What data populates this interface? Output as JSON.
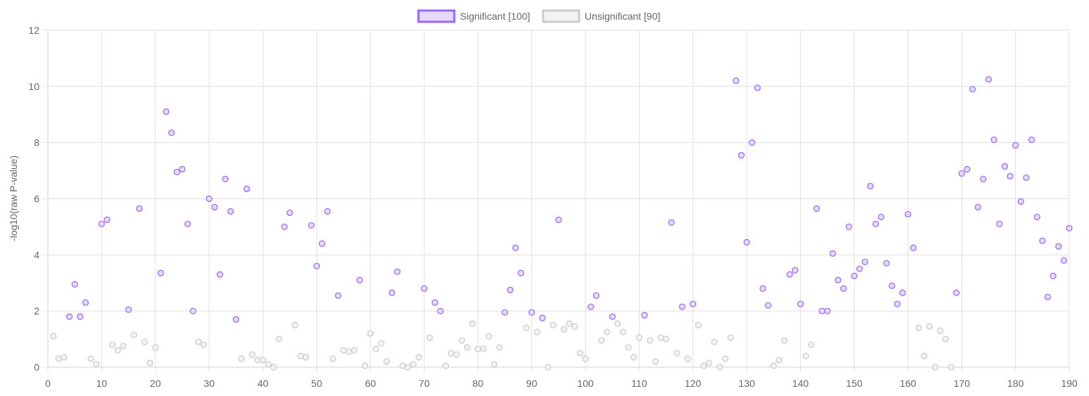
{
  "chart_data": {
    "type": "scatter",
    "title": "",
    "xlabel": "",
    "ylabel": "-log10(raw P-value)",
    "xlim": [
      0,
      190
    ],
    "ylim": [
      0,
      12
    ],
    "xticks": [
      0,
      10,
      20,
      30,
      40,
      50,
      60,
      70,
      80,
      90,
      100,
      110,
      120,
      130,
      140,
      150,
      160,
      170,
      180,
      190
    ],
    "yticks": [
      0,
      2,
      4,
      6,
      8,
      10,
      12
    ],
    "grid": true,
    "legend_position": "top",
    "series": [
      {
        "name": "Significant [100]",
        "stroke": "#9966ff",
        "fill": "#e5d9ff",
        "points": [
          [
            4,
            1.8
          ],
          [
            5,
            2.95
          ],
          [
            6,
            1.8
          ],
          [
            7,
            2.3
          ],
          [
            10,
            5.1
          ],
          [
            11,
            5.25
          ],
          [
            15,
            2.05
          ],
          [
            17,
            5.65
          ],
          [
            21,
            3.35
          ],
          [
            22,
            9.1
          ],
          [
            23,
            8.35
          ],
          [
            24,
            6.95
          ],
          [
            25,
            7.05
          ],
          [
            26,
            5.1
          ],
          [
            27,
            2.0
          ],
          [
            30,
            6.0
          ],
          [
            31,
            5.7
          ],
          [
            32,
            3.3
          ],
          [
            33,
            6.7
          ],
          [
            34,
            5.55
          ],
          [
            35,
            1.7
          ],
          [
            37,
            6.35
          ],
          [
            44,
            5.0
          ],
          [
            45,
            5.5
          ],
          [
            49,
            5.05
          ],
          [
            50,
            3.6
          ],
          [
            51,
            4.4
          ],
          [
            52,
            5.55
          ],
          [
            54,
            2.55
          ],
          [
            58,
            3.1
          ],
          [
            64,
            2.65
          ],
          [
            65,
            3.4
          ],
          [
            70,
            2.8
          ],
          [
            72,
            2.3
          ],
          [
            73,
            2.0
          ],
          [
            85,
            1.95
          ],
          [
            86,
            2.75
          ],
          [
            87,
            4.25
          ],
          [
            88,
            3.35
          ],
          [
            90,
            1.95
          ],
          [
            92,
            1.75
          ],
          [
            95,
            5.25
          ],
          [
            101,
            2.15
          ],
          [
            102,
            2.55
          ],
          [
            105,
            1.8
          ],
          [
            111,
            1.85
          ],
          [
            116,
            5.15
          ],
          [
            118,
            2.15
          ],
          [
            120,
            2.25
          ],
          [
            128,
            10.2
          ],
          [
            129,
            7.55
          ],
          [
            130,
            4.45
          ],
          [
            131,
            8.0
          ],
          [
            132,
            9.95
          ],
          [
            133,
            2.8
          ],
          [
            134,
            2.2
          ],
          [
            138,
            3.3
          ],
          [
            139,
            3.45
          ],
          [
            140,
            2.25
          ],
          [
            143,
            5.65
          ],
          [
            144,
            2.0
          ],
          [
            145,
            2.0
          ],
          [
            146,
            4.05
          ],
          [
            147,
            3.1
          ],
          [
            148,
            2.8
          ],
          [
            149,
            5.0
          ],
          [
            150,
            3.25
          ],
          [
            151,
            3.5
          ],
          [
            152,
            3.75
          ],
          [
            153,
            6.45
          ],
          [
            154,
            5.1
          ],
          [
            155,
            5.35
          ],
          [
            156,
            3.7
          ],
          [
            157,
            2.9
          ],
          [
            158,
            2.25
          ],
          [
            159,
            2.65
          ],
          [
            160,
            5.45
          ],
          [
            161,
            4.25
          ],
          [
            169,
            2.65
          ],
          [
            170,
            6.9
          ],
          [
            171,
            7.05
          ],
          [
            172,
            9.9
          ],
          [
            173,
            5.7
          ],
          [
            174,
            6.7
          ],
          [
            175,
            10.25
          ],
          [
            176,
            8.1
          ],
          [
            177,
            5.1
          ],
          [
            178,
            7.15
          ],
          [
            179,
            6.8
          ],
          [
            180,
            7.9
          ],
          [
            181,
            5.9
          ],
          [
            182,
            6.75
          ],
          [
            183,
            8.1
          ],
          [
            184,
            5.35
          ],
          [
            185,
            4.5
          ],
          [
            186,
            2.5
          ],
          [
            187,
            3.25
          ],
          [
            188,
            4.3
          ],
          [
            189,
            3.8
          ],
          [
            190,
            4.95
          ]
        ]
      },
      {
        "name": "Unsignificant [90]",
        "stroke": "#c9cbcf",
        "fill": "#f2f2f3",
        "points": [
          [
            1,
            1.1
          ],
          [
            2,
            0.3
          ],
          [
            3,
            0.35
          ],
          [
            8,
            0.3
          ],
          [
            9,
            0.1
          ],
          [
            12,
            0.8
          ],
          [
            13,
            0.6
          ],
          [
            14,
            0.75
          ],
          [
            16,
            1.15
          ],
          [
            18,
            0.9
          ],
          [
            19,
            0.15
          ],
          [
            20,
            0.7
          ],
          [
            28,
            0.9
          ],
          [
            29,
            0.8
          ],
          [
            36,
            0.3
          ],
          [
            38,
            0.45
          ],
          [
            39,
            0.25
          ],
          [
            40,
            0.25
          ],
          [
            41,
            0.1
          ],
          [
            42,
            0.0
          ],
          [
            43,
            1.0
          ],
          [
            46,
            1.5
          ],
          [
            47,
            0.4
          ],
          [
            48,
            0.35
          ],
          [
            53,
            0.3
          ],
          [
            55,
            0.6
          ],
          [
            56,
            0.55
          ],
          [
            57,
            0.6
          ],
          [
            59,
            0.05
          ],
          [
            60,
            1.2
          ],
          [
            61,
            0.65
          ],
          [
            62,
            0.85
          ],
          [
            63,
            0.2
          ],
          [
            66,
            0.05
          ],
          [
            67,
            0.0
          ],
          [
            68,
            0.1
          ],
          [
            69,
            0.35
          ],
          [
            71,
            1.05
          ],
          [
            74,
            0.05
          ],
          [
            75,
            0.5
          ],
          [
            76,
            0.45
          ],
          [
            77,
            0.95
          ],
          [
            78,
            0.7
          ],
          [
            79,
            1.55
          ],
          [
            80,
            0.65
          ],
          [
            81,
            0.65
          ],
          [
            82,
            1.1
          ],
          [
            83,
            0.1
          ],
          [
            84,
            0.7
          ],
          [
            89,
            1.4
          ],
          [
            91,
            1.25
          ],
          [
            93,
            0.0
          ],
          [
            94,
            1.5
          ],
          [
            96,
            1.35
          ],
          [
            97,
            1.55
          ],
          [
            98,
            1.45
          ],
          [
            99,
            0.5
          ],
          [
            100,
            0.3
          ],
          [
            103,
            0.95
          ],
          [
            104,
            1.25
          ],
          [
            106,
            1.55
          ],
          [
            107,
            1.25
          ],
          [
            108,
            0.7
          ],
          [
            109,
            0.35
          ],
          [
            110,
            1.05
          ],
          [
            112,
            0.95
          ],
          [
            113,
            0.2
          ],
          [
            114,
            1.05
          ],
          [
            115,
            1.0
          ],
          [
            117,
            0.5
          ],
          [
            119,
            0.3
          ],
          [
            121,
            1.5
          ],
          [
            122,
            0.05
          ],
          [
            123,
            0.15
          ],
          [
            124,
            0.9
          ],
          [
            125,
            0.0
          ],
          [
            126,
            0.3
          ],
          [
            127,
            1.05
          ],
          [
            135,
            0.05
          ],
          [
            136,
            0.25
          ],
          [
            137,
            0.95
          ],
          [
            141,
            0.4
          ],
          [
            142,
            0.8
          ],
          [
            162,
            1.4
          ],
          [
            163,
            0.4
          ],
          [
            164,
            1.45
          ],
          [
            165,
            0.0
          ],
          [
            166,
            1.3
          ],
          [
            167,
            1.0
          ],
          [
            168,
            0.0
          ]
        ]
      }
    ]
  }
}
